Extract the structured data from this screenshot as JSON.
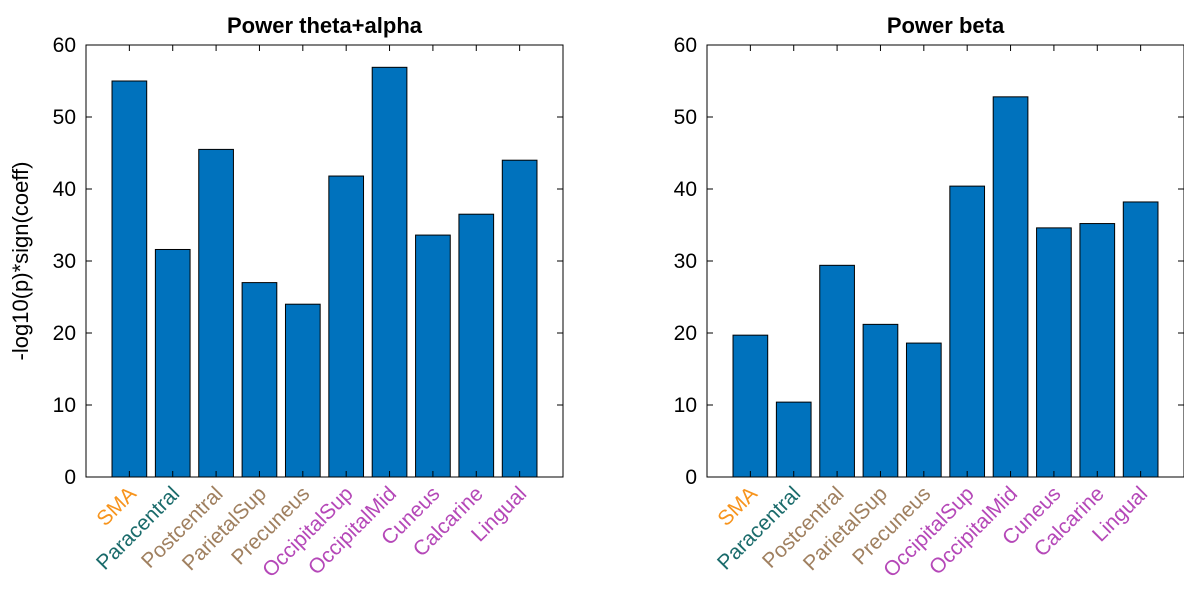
{
  "colors": {
    "bar_fill": "#0072bd",
    "motor": "#f7941d",
    "paracentral": "#1a6b6b",
    "parietal": "#a08060",
    "occipital": "#b548b8"
  },
  "chart_data": [
    {
      "type": "bar",
      "title": "Power theta+alpha",
      "ylabel": "-log10(p)*sign(coeff)",
      "xlabel": "",
      "ylim": [
        0,
        60
      ],
      "yticks": [
        "0",
        "10",
        "20",
        "30",
        "40",
        "50",
        "60"
      ],
      "categories": [
        "SMA",
        "Paracentral",
        "Postcentral",
        "ParietalSup",
        "Precuneus",
        "OccipitalSup",
        "OccipitalMid",
        "Cuneus",
        "Calcarine",
        "Lingual"
      ],
      "category_colors": [
        "#f7941d",
        "#1a6b6b",
        "#a08060",
        "#a08060",
        "#a08060",
        "#b548b8",
        "#b548b8",
        "#b548b8",
        "#b548b8",
        "#b548b8"
      ],
      "values": [
        55,
        31.6,
        45.5,
        27,
        24,
        41.8,
        56.9,
        33.6,
        36.5,
        44
      ],
      "grid": false
    },
    {
      "type": "bar",
      "title": "Power beta",
      "ylabel": "",
      "xlabel": "",
      "ylim": [
        0,
        60
      ],
      "yticks": [
        "0",
        "10",
        "20",
        "30",
        "40",
        "50",
        "60"
      ],
      "categories": [
        "SMA",
        "Paracentral",
        "Postcentral",
        "ParietalSup",
        "Precuneus",
        "OccipitalSup",
        "OccipitalMid",
        "Cuneus",
        "Calcarine",
        "Lingual"
      ],
      "category_colors": [
        "#f7941d",
        "#1a6b6b",
        "#a08060",
        "#a08060",
        "#a08060",
        "#b548b8",
        "#b548b8",
        "#b548b8",
        "#b548b8",
        "#b548b8"
      ],
      "values": [
        19.7,
        10.4,
        29.4,
        21.2,
        18.6,
        40.4,
        52.8,
        34.6,
        35.2,
        38.2
      ],
      "grid": false
    }
  ]
}
